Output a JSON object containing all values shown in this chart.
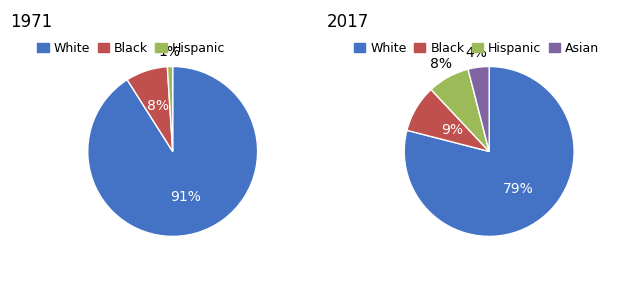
{
  "title_1971": "1971",
  "title_2017": "2017",
  "pie1": {
    "labels": [
      "White",
      "Black",
      "Hispanic"
    ],
    "values": [
      91,
      8,
      1
    ],
    "colors": [
      "#4472C4",
      "#C0504D",
      "#9BBB59"
    ],
    "pct_labels": [
      "91%",
      "8%",
      "1%"
    ],
    "pct_colors": [
      "white",
      "white",
      "black"
    ]
  },
  "pie2": {
    "labels": [
      "White",
      "Black",
      "Hispanic",
      "Asian"
    ],
    "values": [
      79,
      9,
      8,
      4
    ],
    "colors": [
      "#4472C4",
      "#C0504D",
      "#9BBB59",
      "#8064A2"
    ],
    "pct_labels": [
      "79%",
      "9%",
      "8%",
      "4%"
    ],
    "pct_colors": [
      "white",
      "white",
      "black",
      "black"
    ]
  },
  "legend1_labels": [
    "White",
    "Black",
    "Hispanic"
  ],
  "legend1_colors": [
    "#4472C4",
    "#C0504D",
    "#9BBB59"
  ],
  "legend2_labels": [
    "White",
    "Black",
    "Hispanic",
    "Asian"
  ],
  "legend2_colors": [
    "#4472C4",
    "#C0504D",
    "#9BBB59",
    "#8064A2"
  ],
  "title_fontsize": 12,
  "pct_fontsize": 10,
  "legend_fontsize": 9,
  "bg_color": "#FFFFFF"
}
